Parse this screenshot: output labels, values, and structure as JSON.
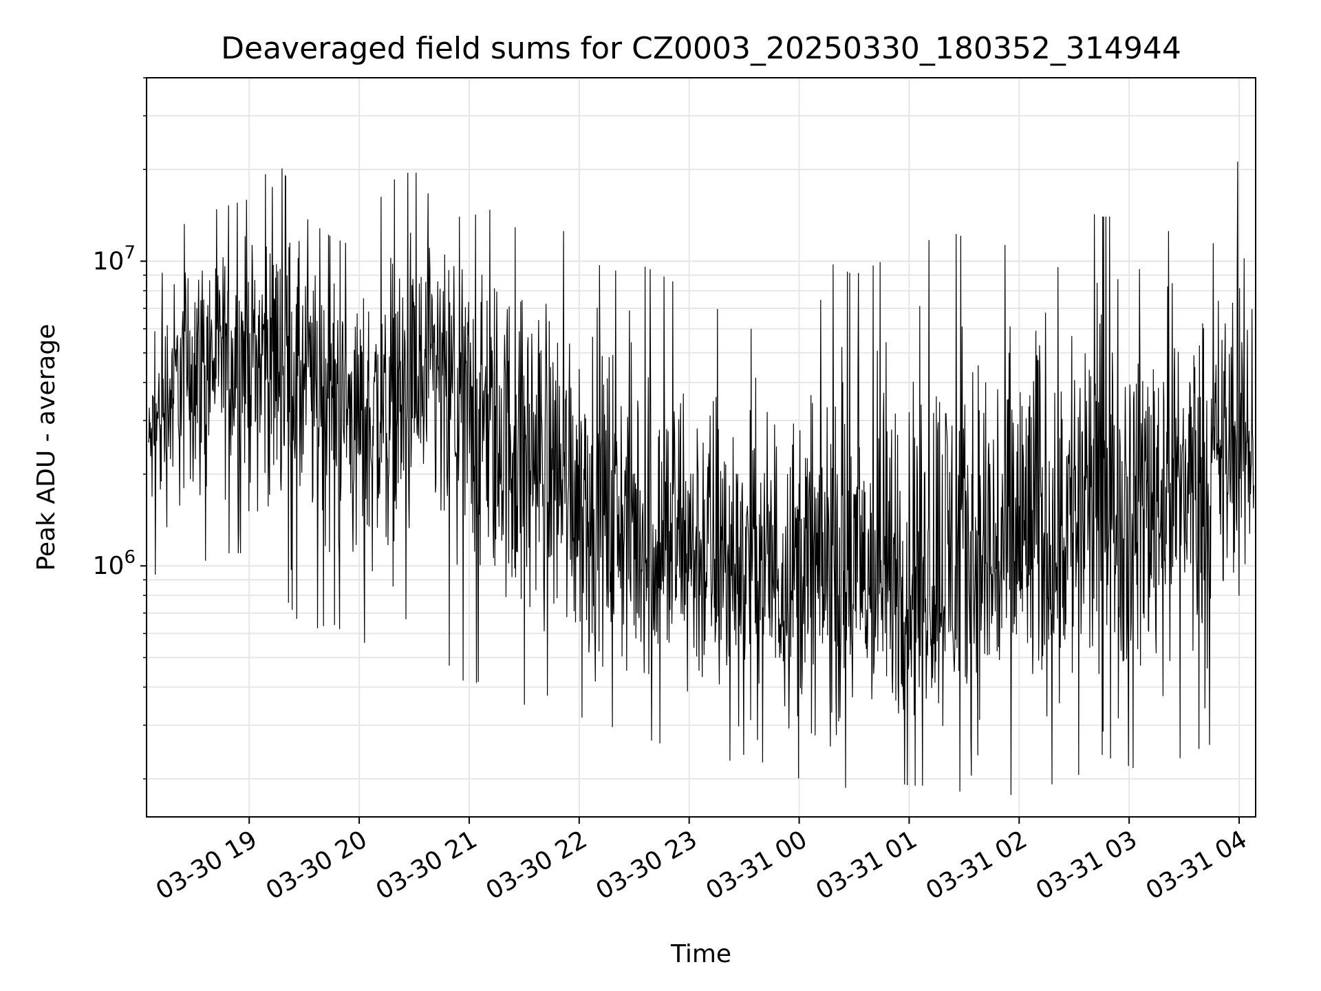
{
  "chart_data": {
    "type": "line",
    "title": "Deaveraged field sums for CZ0003_20250330_180352_314944",
    "xlabel": "Time",
    "ylabel": "Peak ADU - average",
    "x_range": [
      "2025-03-30 18:04",
      "2025-03-31 04:09"
    ],
    "ylim": [
      150000,
      40000000
    ],
    "y_scale": "log",
    "y_ticks": [
      {
        "value": 1000000,
        "label": "10",
        "exp": "6"
      },
      {
        "value": 10000000,
        "label": "10",
        "exp": "7"
      }
    ],
    "x_ticks": [
      {
        "time": "2025-03-30 19:00",
        "label": "03-30 19"
      },
      {
        "time": "2025-03-30 20:00",
        "label": "03-30 20"
      },
      {
        "time": "2025-03-30 21:00",
        "label": "03-30 21"
      },
      {
        "time": "2025-03-30 22:00",
        "label": "03-30 22"
      },
      {
        "time": "2025-03-30 23:00",
        "label": "03-30 23"
      },
      {
        "time": "2025-03-31 00:00",
        "label": "03-31 00"
      },
      {
        "time": "2025-03-31 01:00",
        "label": "03-31 01"
      },
      {
        "time": "2025-03-31 02:00",
        "label": "03-31 02"
      },
      {
        "time": "2025-03-31 03:00",
        "label": "03-31 03"
      },
      {
        "time": "2025-03-31 04:00",
        "label": "03-31 04"
      }
    ],
    "grid": true,
    "line_color": "#000000",
    "series": [
      {
        "x": [
          "2025-03-30 18:05",
          "2025-03-30 18:15",
          "2025-03-30 18:30",
          "2025-03-30 18:45",
          "2025-03-30 19:00",
          "2025-03-30 19:15",
          "2025-03-30 19:30",
          "2025-03-30 19:45",
          "2025-03-30 20:00",
          "2025-03-30 20:15",
          "2025-03-30 20:30",
          "2025-03-30 20:45",
          "2025-03-30 21:00",
          "2025-03-30 21:15",
          "2025-03-30 21:30",
          "2025-03-30 21:45",
          "2025-03-30 22:00",
          "2025-03-30 22:15",
          "2025-03-30 22:30",
          "2025-03-30 22:45",
          "2025-03-30 23:00",
          "2025-03-30 23:15",
          "2025-03-30 23:30",
          "2025-03-30 23:45",
          "2025-03-31 00:00",
          "2025-03-31 00:15",
          "2025-03-31 00:30",
          "2025-03-31 00:45",
          "2025-03-31 01:00",
          "2025-03-31 01:15",
          "2025-03-31 01:30",
          "2025-03-31 01:45",
          "2025-03-31 02:00",
          "2025-03-31 02:15",
          "2025-03-31 02:30",
          "2025-03-31 02:45",
          "2025-03-31 03:00",
          "2025-03-31 03:15",
          "2025-03-31 03:30",
          "2025-03-31 03:45",
          "2025-03-31 04:00",
          "2025-03-31 04:09"
        ],
        "median": [
          2500000,
          3500000,
          5000000,
          5000000,
          5000000,
          5200000,
          4200000,
          4000000,
          3000000,
          3200000,
          3800000,
          4200000,
          3500000,
          2700000,
          2500000,
          2200000,
          1800000,
          1500000,
          1200000,
          1150000,
          1100000,
          1000000,
          1000000,
          950000,
          950000,
          900000,
          850000,
          850000,
          900000,
          900000,
          950000,
          1000000,
          1150000,
          1300000,
          1400000,
          1500000,
          1600000,
          1800000,
          2000000,
          2100000,
          2300000,
          2400000
        ],
        "upper_envelope": [
          4000000,
          12000000,
          14000000,
          15000000,
          16000000,
          22000000,
          14000000,
          12000000,
          11000000,
          18000000,
          20000000,
          14000000,
          14000000,
          15000000,
          12000000,
          13000000,
          12000000,
          9000000,
          10000000,
          9000000,
          8000000,
          7000000,
          6000000,
          6000000,
          6000000,
          10000000,
          9000000,
          10000000,
          9000000,
          13000000,
          12000000,
          13000000,
          13000000,
          14000000,
          15000000,
          14000000,
          14000000,
          13000000,
          12000000,
          11000000,
          22000000,
          5000000
        ],
        "lower_envelope": [
          900000,
          1000000,
          1000000,
          1100000,
          1100000,
          900000,
          600000,
          650000,
          550000,
          600000,
          700000,
          500000,
          400000,
          450000,
          350000,
          380000,
          320000,
          300000,
          280000,
          260000,
          250000,
          220000,
          240000,
          220000,
          200000,
          180000,
          190000,
          200000,
          190000,
          190000,
          180000,
          170000,
          180000,
          190000,
          200000,
          240000,
          220000,
          200000,
          240000,
          260000,
          800000,
          500000
        ]
      }
    ]
  }
}
